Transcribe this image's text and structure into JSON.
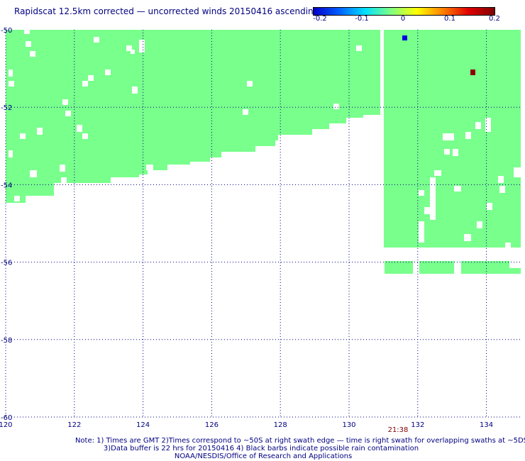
{
  "title": "Rapidscat 12.5km corrected — uncorrected winds 20150416 ascending",
  "colorbar": {
    "ticks": [
      "-0.2",
      "-0.1",
      "0",
      "0.1",
      "0.2"
    ],
    "colors": [
      "#0000c8",
      "#0060ff",
      "#00e0ff",
      "#80ff80",
      "#ffff00",
      "#ff8000",
      "#e00000",
      "#800000"
    ]
  },
  "map": {
    "lon_range": [
      120,
      135
    ],
    "lat_range": [
      -60,
      -50
    ],
    "lon_labels": [
      "120",
      "122",
      "124",
      "126",
      "128",
      "130",
      "132",
      "134"
    ],
    "lat_labels": [
      "-50",
      "-52",
      "-54",
      "-56",
      "-58",
      "-60"
    ],
    "swath_color": "#78ff8c",
    "time_label": "21:38",
    "time_color": "#800000"
  },
  "notes": {
    "line1": "Note: 1) Times are GMT 2)Times correspond to ~50S at right swath edge — time is right swath for overlapping swaths at ~5DS",
    "line2": "3)Data buffer is 22 hrs for 20150416 4) Black barbs indicate possible rain contamination",
    "line3": "NOAA/NESDIS/Office of Research and Applications"
  }
}
